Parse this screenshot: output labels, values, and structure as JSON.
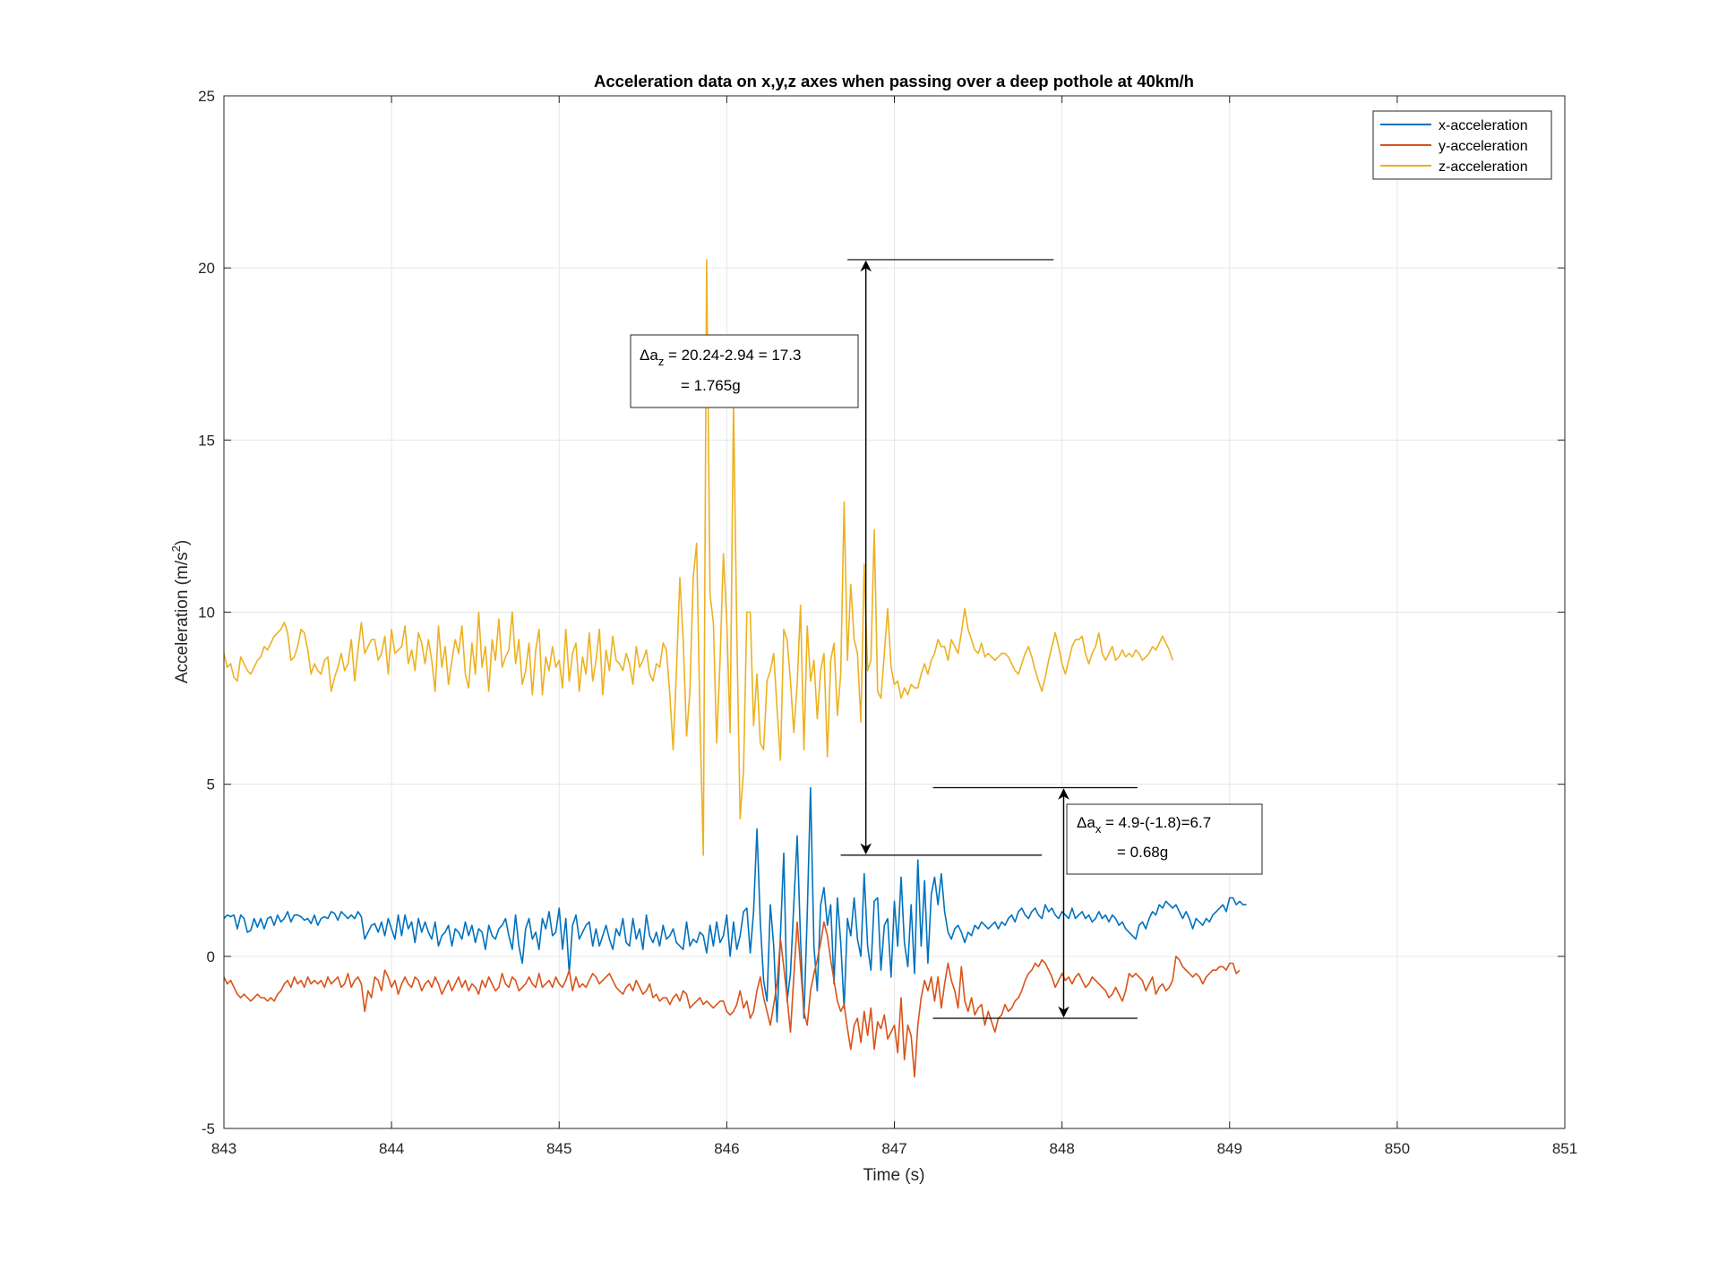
{
  "chart_data": {
    "type": "line",
    "title": "Acceleration data on x,y,z axes when passing over a deep pothole at 40km/h",
    "xlabel": "Time (s)",
    "ylabel": "Acceleration (m/s",
    "ylabel_sup": "2",
    "ylabel_end": ")",
    "xlim": [
      843,
      851
    ],
    "ylim": [
      -5,
      25
    ],
    "xticks": [
      "843",
      "844",
      "845",
      "846",
      "847",
      "848",
      "849",
      "850",
      "851"
    ],
    "yticks": [
      "-5",
      "0",
      "5",
      "10",
      "15",
      "20",
      "25"
    ],
    "grid": true,
    "legend_position": "top-right",
    "x_step": 0.02,
    "series": [
      {
        "name": "x-acceleration",
        "color": "#0072BD",
        "values": [
          1.1,
          1.2,
          1.15,
          1.2,
          0.8,
          1.2,
          1.1,
          0.7,
          0.75,
          1.1,
          0.85,
          1.1,
          0.8,
          1.1,
          1.15,
          0.9,
          1.2,
          1.0,
          1.1,
          1.3,
          1.0,
          1.2,
          1.2,
          1.15,
          1.05,
          1.1,
          0.95,
          1.2,
          0.9,
          1.1,
          1.15,
          1.1,
          1.3,
          1.25,
          1.05,
          1.3,
          1.2,
          1.1,
          1.2,
          1.1,
          1.3,
          1.15,
          0.5,
          0.7,
          0.9,
          0.95,
          0.7,
          1.0,
          0.6,
          1.1,
          0.8,
          0.5,
          1.2,
          0.6,
          1.2,
          0.8,
          1.0,
          0.4,
          1.1,
          0.7,
          1.0,
          0.7,
          0.5,
          1.0,
          0.3,
          0.6,
          0.7,
          0.9,
          0.3,
          0.8,
          0.7,
          0.5,
          1.0,
          0.6,
          0.9,
          0.4,
          0.8,
          0.7,
          0.2,
          0.9,
          0.6,
          0.5,
          0.8,
          0.9,
          1.1,
          0.6,
          0.2,
          1.2,
          0.3,
          -0.2,
          0.8,
          1.1,
          0.5,
          0.7,
          0.2,
          1.1,
          0.8,
          1.3,
          0.6,
          0.7,
          1.4,
          0.2,
          1.1,
          -0.5,
          0.9,
          1.2,
          0.5,
          0.7,
          0.9,
          1.0,
          0.3,
          0.8,
          0.3,
          0.6,
          0.9,
          0.5,
          0.2,
          0.8,
          0.6,
          1.1,
          0.4,
          0.3,
          1.1,
          0.5,
          0.8,
          0.2,
          1.2,
          0.6,
          0.4,
          0.7,
          0.3,
          0.9,
          0.5,
          0.6,
          0.8,
          0.4,
          0.3,
          0.2,
          1.0,
          0.3,
          0.5,
          0.4,
          0.7,
          0.6,
          0.1,
          0.9,
          0.3,
          1.0,
          0.4,
          0.6,
          1.2,
          0.0,
          1.0,
          0.2,
          0.6,
          1.3,
          1.4,
          0.1,
          1.3,
          3.7,
          1.0,
          -0.7,
          -1.3,
          1.5,
          0.3,
          -1.9,
          0.6,
          3.0,
          -1.3,
          -0.5,
          1.5,
          3.5,
          0.5,
          -1.8,
          1.2,
          4.9,
          0.3,
          -1.0,
          1.5,
          2.0,
          0.9,
          1.5,
          -0.8,
          1.7,
          0.4,
          -1.5,
          1.1,
          0.6,
          1.7,
          0.5,
          0.0,
          2.4,
          0.3,
          -0.4,
          1.6,
          1.7,
          -0.4,
          0.9,
          1.1,
          -0.6,
          1.6,
          0.3,
          2.3,
          0.4,
          -0.3,
          1.5,
          -0.5,
          2.8,
          0.3,
          2.2,
          -0.2,
          1.8,
          2.3,
          1.5,
          2.4,
          1.3,
          0.7,
          0.5,
          0.8,
          0.9,
          0.7,
          0.4,
          0.7,
          0.6,
          0.9,
          0.8,
          1.0,
          0.9,
          0.8,
          0.9,
          1.0,
          0.8,
          1.0,
          0.9,
          1.1,
          1.2,
          1.0,
          1.3,
          1.4,
          1.2,
          1.1,
          1.3,
          1.4,
          1.2,
          1.1,
          1.5,
          1.3,
          1.4,
          1.2,
          1.1,
          1.3,
          1.2,
          1.1,
          1.4,
          1.1,
          1.2,
          1.3,
          1.1,
          1.2,
          1.0,
          1.1,
          1.3,
          1.1,
          1.2,
          1.0,
          1.2,
          1.1,
          0.9,
          1.0,
          0.8,
          0.7,
          0.6,
          0.5,
          0.9,
          1.0,
          0.8,
          1.1,
          1.3,
          1.2,
          1.5,
          1.4,
          1.6,
          1.5,
          1.4,
          1.5,
          1.3,
          1.1,
          1.3,
          1.1,
          0.8,
          1.1,
          1.0,
          0.9,
          1.1,
          1.0,
          1.2,
          1.3,
          1.4,
          1.5,
          1.3,
          1.7,
          1.7,
          1.5,
          1.6,
          1.5,
          1.5
        ]
      },
      {
        "name": "y-acceleration",
        "color": "#D95319",
        "values": [
          -0.6,
          -0.8,
          -0.7,
          -0.9,
          -1.1,
          -1.2,
          -1.1,
          -1.2,
          -1.3,
          -1.2,
          -1.1,
          -1.2,
          -1.2,
          -1.3,
          -1.2,
          -1.3,
          -1.1,
          -1.0,
          -0.8,
          -0.7,
          -0.9,
          -0.6,
          -0.8,
          -0.7,
          -0.9,
          -0.6,
          -0.8,
          -0.7,
          -0.8,
          -0.7,
          -0.9,
          -0.6,
          -0.8,
          -0.7,
          -0.6,
          -0.9,
          -0.8,
          -0.5,
          -0.9,
          -0.7,
          -0.6,
          -0.8,
          -1.6,
          -1.0,
          -1.2,
          -0.6,
          -0.7,
          -1.0,
          -0.4,
          -0.6,
          -0.9,
          -0.7,
          -1.1,
          -0.8,
          -0.6,
          -0.8,
          -0.9,
          -0.6,
          -0.7,
          -1.0,
          -0.8,
          -0.7,
          -0.9,
          -0.6,
          -0.8,
          -1.1,
          -0.9,
          -0.7,
          -1.0,
          -0.8,
          -0.6,
          -0.9,
          -0.7,
          -1.0,
          -0.8,
          -0.9,
          -1.1,
          -0.7,
          -0.9,
          -0.6,
          -0.8,
          -1.0,
          -0.9,
          -0.5,
          -0.8,
          -0.9,
          -0.6,
          -0.7,
          -1.0,
          -0.9,
          -0.8,
          -0.6,
          -0.8,
          -0.9,
          -0.5,
          -0.9,
          -0.8,
          -0.7,
          -0.9,
          -0.6,
          -0.8,
          -0.9,
          -0.7,
          -0.4,
          -1.0,
          -0.6,
          -0.9,
          -0.8,
          -0.9,
          -0.7,
          -0.5,
          -0.6,
          -0.8,
          -0.7,
          -0.6,
          -0.5,
          -0.7,
          -0.9,
          -1.0,
          -1.1,
          -0.9,
          -0.8,
          -1.0,
          -0.7,
          -0.9,
          -1.1,
          -1.0,
          -0.8,
          -1.2,
          -1.1,
          -1.3,
          -1.2,
          -1.2,
          -1.4,
          -1.2,
          -1.1,
          -1.3,
          -1.0,
          -1.1,
          -1.5,
          -1.4,
          -1.3,
          -1.2,
          -1.4,
          -1.3,
          -1.4,
          -1.5,
          -1.4,
          -1.3,
          -1.3,
          -1.6,
          -1.7,
          -1.6,
          -1.4,
          -1.0,
          -1.5,
          -1.3,
          -1.8,
          -1.6,
          -1.0,
          -0.6,
          -1.2,
          -1.6,
          -2.0,
          -1.4,
          -0.8,
          0.5,
          -0.3,
          -1.2,
          -2.2,
          -0.6,
          1.0,
          -0.3,
          -1.6,
          -2.0,
          -1.0,
          -0.5,
          -0.1,
          0.4,
          1.0,
          0.6,
          -0.1,
          -0.7,
          -1.3,
          -1.6,
          -1.4,
          -2.1,
          -2.7,
          -2.0,
          -1.8,
          -2.5,
          -1.6,
          -2.3,
          -1.5,
          -2.7,
          -1.9,
          -2.1,
          -1.7,
          -2.4,
          -2.2,
          -2.0,
          -2.8,
          -1.2,
          -3.0,
          -2.0,
          -2.3,
          -3.5,
          -2.0,
          -1.2,
          -0.7,
          -1.0,
          -0.6,
          -1.3,
          -0.6,
          -1.5,
          -0.8,
          -0.2,
          -0.7,
          -1.0,
          -1.5,
          -0.3,
          -1.3,
          -1.6,
          -1.2,
          -1.7,
          -1.5,
          -1.4,
          -2.0,
          -1.6,
          -1.9,
          -2.2,
          -1.8,
          -1.7,
          -1.4,
          -1.6,
          -1.5,
          -1.3,
          -1.2,
          -1.0,
          -0.7,
          -0.5,
          -0.4,
          -0.2,
          -0.3,
          -0.1,
          -0.2,
          -0.4,
          -0.6,
          -0.9,
          -0.7,
          -0.5,
          -0.7,
          -0.6,
          -0.8,
          -0.6,
          -0.5,
          -0.7,
          -0.9,
          -0.8,
          -0.6,
          -0.7,
          -0.8,
          -0.9,
          -1.0,
          -1.2,
          -1.1,
          -0.9,
          -1.1,
          -1.3,
          -1.0,
          -0.5,
          -0.6,
          -0.5,
          -0.6,
          -0.7,
          -1.0,
          -0.8,
          -0.6,
          -1.1,
          -0.9,
          -0.8,
          -1.0,
          -0.9,
          -0.7,
          0.0,
          -0.1,
          -0.3,
          -0.4,
          -0.5,
          -0.6,
          -0.5,
          -0.6,
          -0.8,
          -0.6,
          -0.5,
          -0.4,
          -0.4,
          -0.3,
          -0.3,
          -0.4,
          -0.2,
          -0.2,
          -0.5,
          -0.4
        ]
      },
      {
        "name": "z-acceleration",
        "color": "#EDB120",
        "values": [
          8.8,
          8.4,
          8.5,
          8.1,
          8.0,
          8.7,
          8.5,
          8.3,
          8.2,
          8.4,
          8.6,
          8.7,
          9.0,
          8.9,
          9.1,
          9.3,
          9.4,
          9.5,
          9.7,
          9.4,
          8.6,
          8.7,
          9.0,
          9.5,
          9.4,
          8.9,
          8.2,
          8.5,
          8.3,
          8.2,
          8.6,
          8.7,
          7.7,
          8.1,
          8.4,
          8.8,
          8.3,
          8.5,
          9.2,
          8.0,
          8.9,
          9.7,
          8.8,
          9.0,
          9.2,
          9.2,
          8.6,
          8.8,
          9.3,
          8.2,
          9.5,
          8.8,
          8.9,
          9.0,
          9.6,
          8.5,
          8.9,
          8.3,
          9.4,
          9.1,
          8.5,
          9.2,
          8.6,
          7.7,
          9.6,
          8.4,
          9.0,
          7.9,
          8.6,
          9.2,
          8.8,
          9.6,
          8.2,
          7.8,
          9.1,
          8.2,
          10.0,
          8.4,
          9.0,
          7.7,
          9.2,
          8.6,
          9.8,
          8.4,
          8.7,
          8.9,
          10.0,
          8.5,
          9.2,
          7.9,
          8.3,
          9.1,
          7.6,
          8.9,
          9.5,
          7.6,
          8.7,
          8.3,
          9.0,
          8.4,
          8.6,
          7.8,
          9.5,
          8.0,
          8.8,
          9.1,
          7.7,
          8.7,
          8.2,
          9.4,
          8.0,
          8.6,
          9.5,
          7.6,
          8.9,
          8.3,
          9.3,
          8.6,
          8.5,
          8.3,
          8.8,
          8.5,
          7.9,
          9.0,
          8.4,
          8.6,
          8.9,
          8.2,
          8.0,
          8.5,
          8.4,
          9.1,
          8.9,
          7.6,
          6.0,
          8.3,
          11.0,
          9.2,
          6.4,
          7.7,
          11.0,
          12.0,
          7.0,
          2.94,
          20.24,
          10.5,
          9.7,
          6.2,
          8.6,
          11.7,
          9.7,
          6.5,
          16.1,
          9.4,
          4.0,
          5.4,
          10.0,
          10.0,
          6.7,
          8.2,
          6.2,
          6.0,
          8.0,
          8.3,
          8.8,
          7.2,
          5.7,
          9.5,
          9.2,
          8.0,
          6.5,
          7.9,
          10.2,
          6.0,
          9.6,
          8.0,
          8.6,
          6.9,
          8.3,
          8.8,
          5.8,
          8.6,
          9.1,
          7.0,
          8.2,
          13.2,
          8.6,
          10.8,
          9.2,
          8.8,
          6.8,
          11.4,
          8.3,
          8.6,
          12.4,
          7.7,
          7.5,
          8.8,
          10.1,
          8.4,
          7.9,
          8.0,
          7.5,
          7.8,
          7.6,
          7.9,
          7.8,
          7.8,
          8.2,
          8.5,
          8.2,
          8.6,
          8.8,
          9.2,
          9.0,
          9.0,
          8.6,
          9.2,
          9.0,
          8.8,
          9.4,
          10.1,
          9.5,
          9.2,
          8.9,
          8.8,
          9.1,
          8.7,
          8.8,
          8.7,
          8.6,
          8.7,
          8.8,
          8.8,
          8.7,
          8.5,
          8.3,
          8.2,
          8.5,
          8.8,
          9.0,
          8.7,
          8.3,
          8.0,
          7.7,
          8.1,
          8.6,
          9.0,
          9.4,
          9.0,
          8.5,
          8.2,
          8.6,
          9.0,
          9.2,
          9.2,
          9.3,
          8.8,
          8.5,
          8.8,
          9.0,
          9.4,
          8.8,
          8.6,
          8.8,
          9.0,
          8.6,
          8.7,
          8.9,
          8.7,
          8.8,
          8.7,
          8.9,
          8.8,
          8.6,
          8.7,
          8.8,
          9.0,
          8.9,
          9.1,
          9.3,
          9.1,
          8.9,
          8.6
        ]
      }
    ],
    "annotations": [
      {
        "name": "delta-az",
        "line1_main": "Δa",
        "line1_sub": "z",
        "line1_rest": " = 20.24-2.94 = 17.3",
        "line2": "= 1.765g",
        "hlines": [
          {
            "y": 20.24,
            "x1": 846.72,
            "x2": 847.95
          },
          {
            "y": 2.94,
            "x1": 846.68,
            "x2": 847.88
          }
        ],
        "arrow_x": 846.83,
        "arrow_y1": 20.24,
        "arrow_y2": 2.94
      },
      {
        "name": "delta-ax",
        "line1_main": "Δa",
        "line1_sub": "x",
        "line1_rest": " = 4.9-(-1.8)=6.7",
        "line2": "= 0.68g",
        "hlines": [
          {
            "y": 4.9,
            "x1": 847.23,
            "x2": 848.45
          },
          {
            "y": -1.8,
            "x1": 847.23,
            "x2": 848.45
          }
        ],
        "arrow_x": 848.01,
        "arrow_y1": 4.9,
        "arrow_y2": -1.8
      }
    ]
  }
}
